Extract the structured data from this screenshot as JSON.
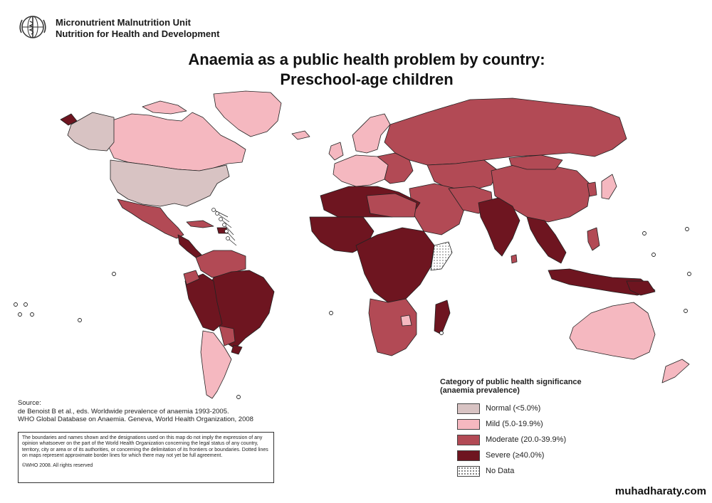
{
  "header": {
    "org_line1": "Micronutrient Malnutrition Unit",
    "org_line2": "Nutrition for Health and Development",
    "logo_icon": "who-emblem-icon"
  },
  "title": {
    "line1": "Anaemia as a public health problem by country:",
    "line2": "Preschool-age children"
  },
  "source": {
    "label": "Source:",
    "line1": "de Benoist B et al., eds. Worldwide prevalence of anaemia 1993-2005.",
    "line2": "WHO Global Database on Anaemia. Geneva, World Health Organization, 2008"
  },
  "disclaimer": {
    "text": "The boundaries and names shown and the designations used on this map do not imply the expression of any opinion whatsoever on the part of the World Health Organization concerning the legal status of any country, territory, city or area or of its authorities, or concerning the delimitation of its frontiers or boundaries. Dotted lines on maps represent approximate border lines for which there may not yet be full agreement.",
    "copyright": "©WHO 2008. All rights reserved"
  },
  "legend": {
    "title_line1": "Category of public health significance",
    "title_line2": "(anaemia prevalence)",
    "items": [
      {
        "label": "Normal (<5.0%)",
        "color": "#d8c3c3"
      },
      {
        "label": "Mild (5.0-19.9%)",
        "color": "#f5b8c0"
      },
      {
        "label": "Moderate (20.0-39.9%)",
        "color": "#b24a55"
      },
      {
        "label": "Severe (≥40.0%)",
        "color": "#6e1520"
      },
      {
        "label": "No Data",
        "color": "#ffffff"
      }
    ]
  },
  "colors": {
    "normal": "#d8c3c3",
    "mild": "#f5b8c0",
    "moderate": "#b24a55",
    "severe": "#6e1520",
    "border": "#222222"
  },
  "watermark": "muhadharaty.com"
}
